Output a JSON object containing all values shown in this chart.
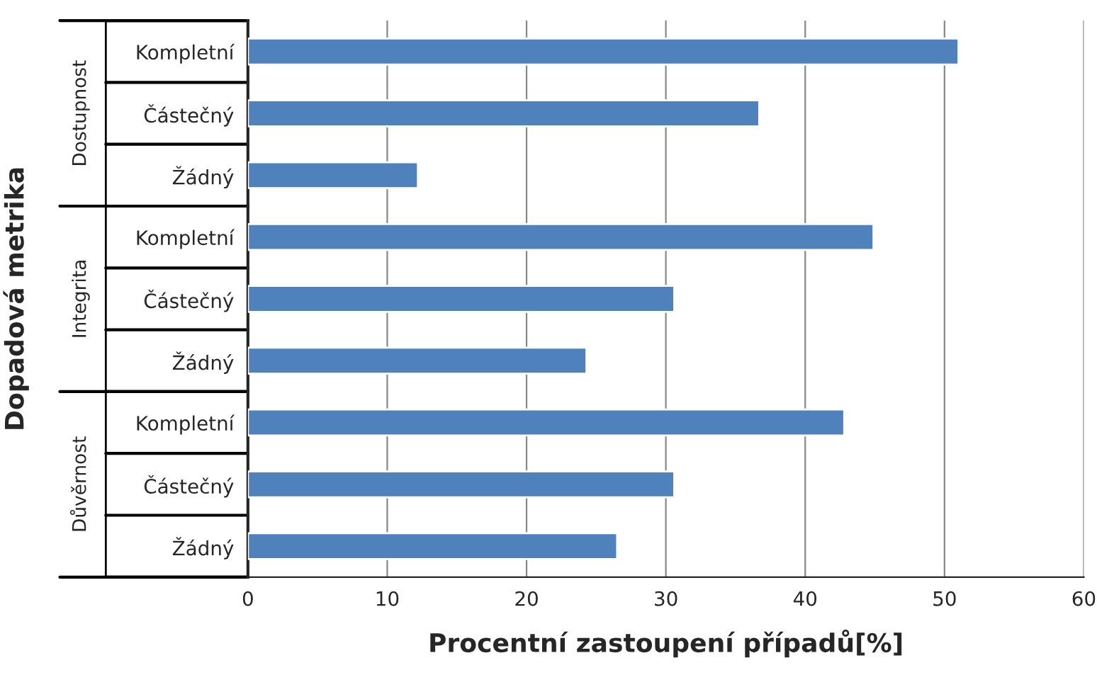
{
  "chart_data": {
    "type": "bar",
    "orientation": "horizontal",
    "xlabel": "Procentní zastoupení případů[%]",
    "ylabel": "Dopadová metrika",
    "categories": [
      "Kompletní",
      "Částečný",
      "Žádný",
      "Kompletní",
      "Částečný",
      "Žádný",
      "Kompletní",
      "Částečný",
      "Žádný"
    ],
    "values": [
      51.0,
      36.7,
      12.2,
      44.9,
      30.6,
      24.3,
      42.8,
      30.6,
      26.5
    ],
    "color": "#4f81bd",
    "annotations": [
      "Dostupnost",
      "Integrita",
      "Důvěrnost"
    ],
    "xlim": [
      0,
      60
    ],
    "xticks": [
      0,
      10,
      20,
      30,
      40,
      50,
      60
    ],
    "grid": "x"
  }
}
